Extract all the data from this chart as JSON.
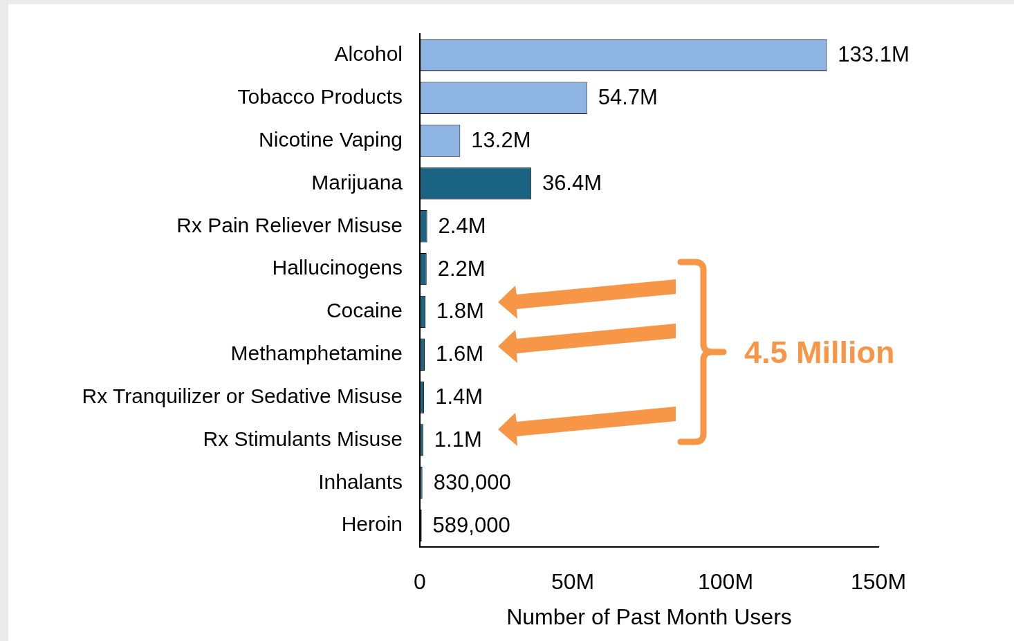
{
  "chart_data": {
    "type": "bar",
    "orientation": "horizontal",
    "categories": [
      "Alcohol",
      "Tobacco Products",
      "Nicotine Vaping",
      "Marijuana",
      "Rx Pain Reliever Misuse",
      "Hallucinogens",
      "Cocaine",
      "Methamphetamine",
      "Rx Tranquilizer or Sedative Misuse",
      "Rx Stimulants Misuse",
      "Inhalants",
      "Heroin"
    ],
    "values": [
      133100000,
      54700000,
      13200000,
      36400000,
      2400000,
      2200000,
      1800000,
      1600000,
      1400000,
      1100000,
      830000,
      589000
    ],
    "colors": [
      "#8db4e2",
      "#8db4e2",
      "#8db4e2",
      "#1b6383",
      "#1b6383",
      "#1b6383",
      "#1b6383",
      "#1b6383",
      "#1b6383",
      "#1b6383",
      "#1b6383",
      "#1b6383"
    ],
    "value_labels": [
      "133.1M",
      "54.7M",
      "13.2M",
      "36.4M",
      "2.4M",
      "2.2M",
      "1.8M",
      "1.6M",
      "1.4M",
      "1.1M",
      "830,000",
      "589,000"
    ],
    "xlabel": "Number of Past Month Users",
    "xlim": [
      0,
      150000000
    ],
    "xticks": [
      0,
      {
        "value": 50000000,
        "label": "50M"
      },
      {
        "value": 100000000,
        "label": "100M"
      },
      {
        "value": 150000000,
        "label": "150M"
      }
    ],
    "annotations": [
      "4.5 Million"
    ],
    "grid": false,
    "legend": false
  }
}
